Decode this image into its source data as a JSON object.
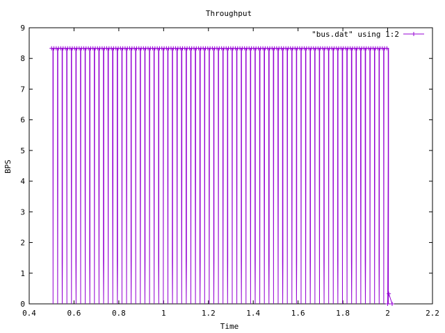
{
  "chart_data": {
    "type": "line",
    "title": "Throughput",
    "xlabel": "Time",
    "ylabel": "BPS",
    "xlim": [
      0.4,
      2.2
    ],
    "ylim": [
      0,
      9
    ],
    "xticks": [
      0.4,
      0.6,
      0.8,
      1,
      1.2,
      1.4,
      1.6,
      1.8,
      2,
      2.2
    ],
    "xtick_labels": [
      "0.4",
      "0.6",
      "0.8",
      "1",
      "1.2",
      "1.4",
      "1.6",
      "1.8",
      "2",
      "2.2"
    ],
    "yticks": [
      0,
      1,
      2,
      3,
      4,
      5,
      6,
      7,
      8,
      9
    ],
    "ytick_labels": [
      "0",
      "1",
      "2",
      "3",
      "4",
      "5",
      "6",
      "7",
      "8",
      "9"
    ],
    "grid": false,
    "legend_position": "top-right",
    "series": [
      {
        "name": "\"bus.dat\" using 1:2",
        "color": "#9400d3",
        "marker": "plus",
        "pattern": {
          "x_start": 0.5,
          "x_end": 2.0,
          "peak": 8.33,
          "period": 0.0205,
          "mid_levels": [
            7.0,
            4.2,
            1.4
          ]
        },
        "tail": [
          {
            "x": 2.0,
            "y": 0.0
          },
          {
            "x": 2.005,
            "y": 0.33
          },
          {
            "x": 2.02,
            "y": 0.0
          }
        ]
      }
    ]
  }
}
